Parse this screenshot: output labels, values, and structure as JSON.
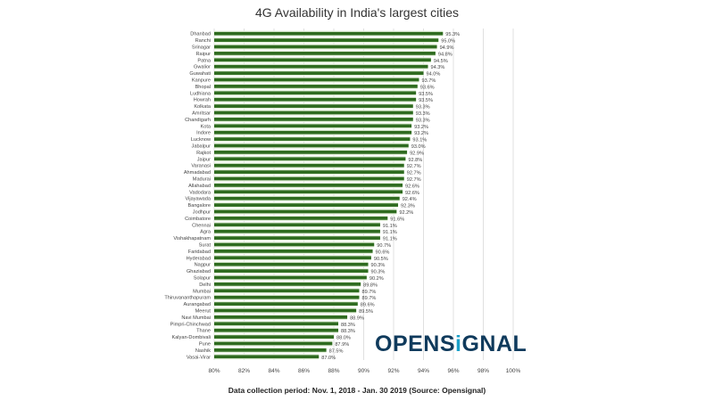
{
  "chart_data": {
    "type": "bar",
    "orientation": "horizontal",
    "title": "4G Availability in India's largest cities",
    "xlabel": "",
    "ylabel": "",
    "xlim": [
      80,
      100
    ],
    "xticks": [
      "80%",
      "82%",
      "84%",
      "86%",
      "88%",
      "90%",
      "92%",
      "94%",
      "96%",
      "98%",
      "100%"
    ],
    "grid": true,
    "categories": [
      "Dhanbad",
      "Ranchi",
      "Srinagar",
      "Raipur",
      "Patna",
      "Gwalior",
      "Guwahati",
      "Kanpure",
      "Bhopal",
      "Ludhiana",
      "Howrah",
      "Kolkata",
      "Amritsar",
      "Chandigarh",
      "Kota",
      "Indore",
      "Lucknow",
      "Jabalpur",
      "Rajkot",
      "Jaipur",
      "Varanasi",
      "Ahmadabad",
      "Madurai",
      "Allahabad",
      "Vadodara",
      "Vijayawada",
      "Bangalore",
      "Jodhpur",
      "Coimbatore",
      "Chennai",
      "Agra",
      "Vishakhapatnam",
      "Surat",
      "Faridabad",
      "Hyderabad",
      "Nagpur",
      "Ghaziabad",
      "Solapur",
      "Delhi",
      "Mumbai",
      "Thiruvananthapuram",
      "Aurangabad",
      "Meerut",
      "Navi Mumbai",
      "Pimpri-Chinchwad",
      "Thane",
      "Kalyan-Dombivali",
      "Pune",
      "Nashik",
      "Vasai-Virar"
    ],
    "values": [
      95.3,
      95.0,
      94.9,
      94.8,
      94.5,
      94.3,
      94.0,
      93.7,
      93.6,
      93.5,
      93.5,
      93.3,
      93.3,
      93.3,
      93.2,
      93.2,
      93.1,
      93.0,
      92.9,
      92.8,
      92.7,
      92.7,
      92.7,
      92.6,
      92.6,
      92.4,
      92.3,
      92.2,
      91.6,
      91.1,
      91.1,
      91.1,
      90.7,
      90.6,
      90.5,
      90.3,
      90.3,
      90.2,
      89.8,
      89.7,
      89.7,
      89.6,
      89.5,
      88.9,
      88.3,
      88.3,
      88.0,
      87.9,
      87.5,
      87.0
    ],
    "value_labels": [
      "95.3%",
      "95.0%",
      "94.9%",
      "94.8%",
      "94.5%",
      "94.3%",
      "94.0%",
      "93.7%",
      "93.6%",
      "93.5%",
      "93.5%",
      "93.3%",
      "93.3%",
      "93.3%",
      "93.2%",
      "93.2%",
      "93.1%",
      "93.0%",
      "92.9%",
      "92.8%",
      "92.7%",
      "92.7%",
      "92.7%",
      "92.6%",
      "92.6%",
      "92.4%",
      "92.3%",
      "92.2%",
      "91.6%",
      "91.1%",
      "91.1%",
      "91.1%",
      "90.7%",
      "90.6%",
      "90.5%",
      "90.3%",
      "90.3%",
      "90.2%",
      "89.8%",
      "89.7%",
      "89.7%",
      "89.6%",
      "89.5%",
      "88.9%",
      "88.3%",
      "88.3%",
      "88.0%",
      "87.9%",
      "87.5%",
      "87.0%"
    ],
    "bar_color": "#2e6b1f",
    "band_color": "#e6f2dd"
  },
  "footer": "Data collection period: Nov. 1, 2018 - Jan. 30 2019 (Source: Opensignal)",
  "logo": {
    "pre": "OPENS",
    "dot": "i",
    "post": "GNAL"
  }
}
